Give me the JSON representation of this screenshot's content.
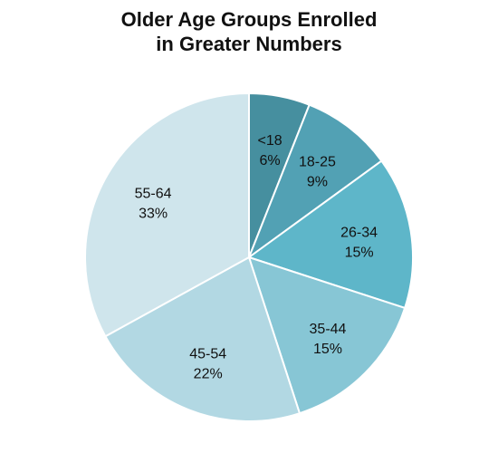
{
  "chart_data": {
    "type": "pie",
    "title_lines": [
      "Older Age Groups Enrolled",
      "in Greater Numbers"
    ],
    "legend": "none",
    "slices": [
      {
        "label": "<18",
        "value": 6,
        "value_label": "6%",
        "color": "#468f9f"
      },
      {
        "label": "18-25",
        "value": 9,
        "value_label": "9%",
        "color": "#52a1b4"
      },
      {
        "label": "26-34",
        "value": 15,
        "value_label": "15%",
        "color": "#5eb6c9"
      },
      {
        "label": "35-44",
        "value": 15,
        "value_label": "15%",
        "color": "#87c6d5"
      },
      {
        "label": "45-54",
        "value": 22,
        "value_label": "22%",
        "color": "#b2d8e3"
      },
      {
        "label": "55-64",
        "value": 33,
        "value_label": "33%",
        "color": "#cfe5ec"
      }
    ]
  }
}
